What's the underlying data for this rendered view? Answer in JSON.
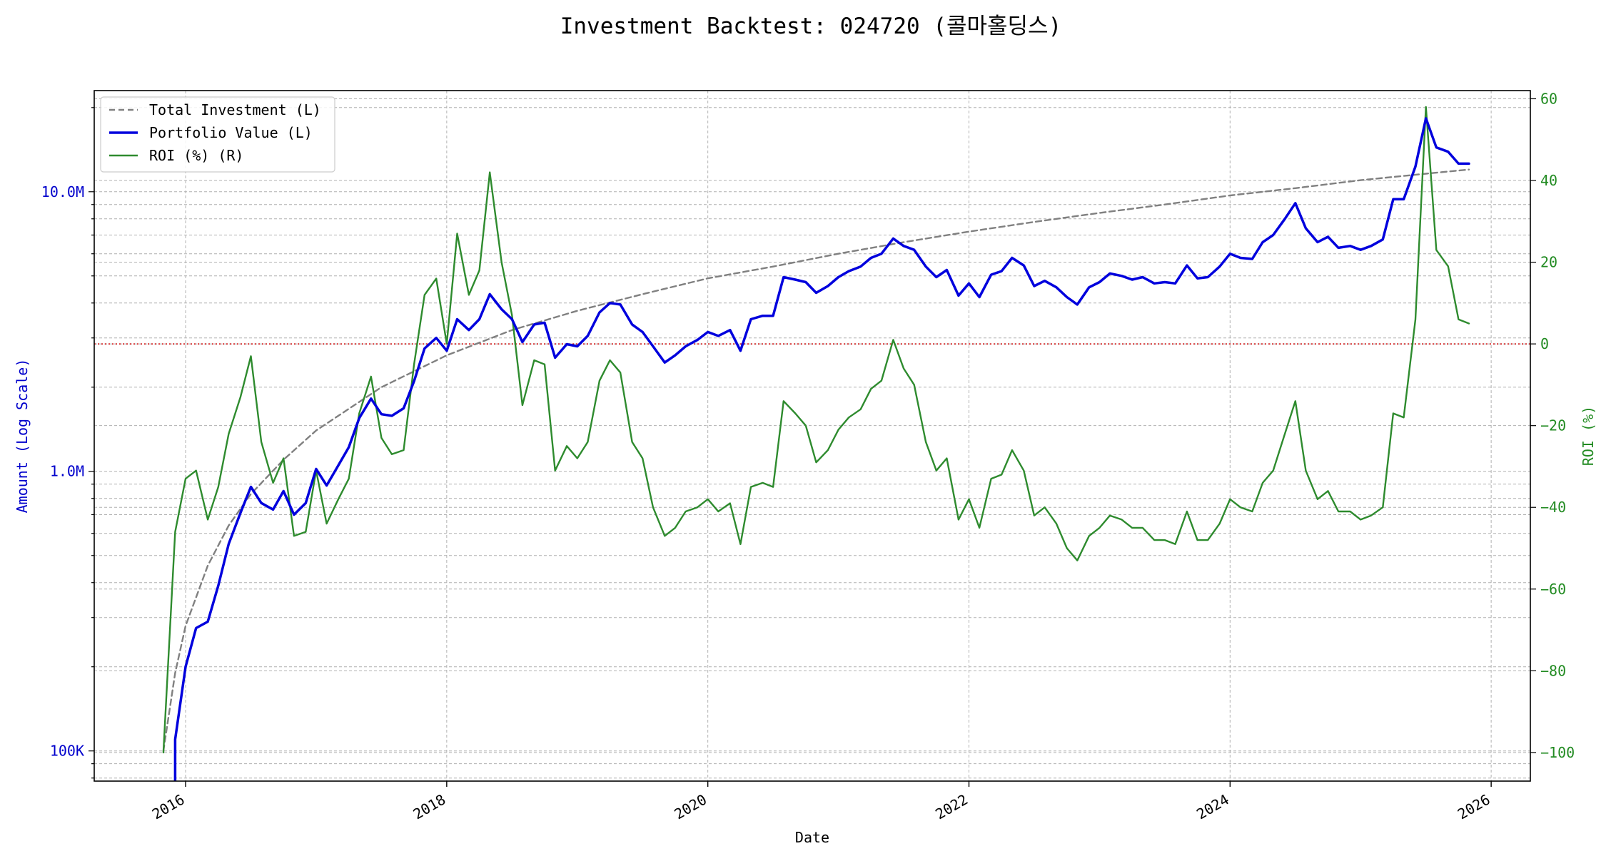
{
  "chart_data": {
    "type": "line",
    "title": "Investment Backtest: 024720 (콜마홀딩스)",
    "xlabel": "Date",
    "ylabel_left": "Amount (Log Scale)",
    "ylabel_right": "ROI (%)",
    "y_left_scale": "log",
    "y_left_range": [
      78000,
      23000000
    ],
    "y_right_range": [
      -107,
      62
    ],
    "x_range": [
      2015.3,
      2026.3
    ],
    "x_ticks": [
      2016,
      2018,
      2020,
      2022,
      2024,
      2026
    ],
    "x_tick_labels": [
      "2016",
      "2018",
      "2020",
      "2022",
      "2024",
      "2026"
    ],
    "y_left_ticks": [
      100000,
      1000000,
      10000000
    ],
    "y_left_tick_labels": [
      "100K",
      "1.0M",
      "10.0M"
    ],
    "y_right_ticks": [
      60,
      40,
      20,
      0,
      -20,
      -40,
      -60,
      -80,
      -100
    ],
    "y_right_tick_labels": [
      "60",
      "40",
      "20",
      "0",
      "−20",
      "−40",
      "−60",
      "−80",
      "−100"
    ],
    "grid": true,
    "reference_line": {
      "axis": "right",
      "value": 0,
      "style": "dotted",
      "color": "#cc0000"
    },
    "legend_position": "top-left",
    "legend": [
      {
        "label": "Total Investment (L)",
        "color": "#808080",
        "style": "dashed"
      },
      {
        "label": "Portfolio Value (L)",
        "color": "#0000dd",
        "style": "solid"
      },
      {
        "label": "ROI (%) (R)",
        "color": "#2e8b2e",
        "style": "solid"
      }
    ],
    "colors": {
      "investment": "#808080",
      "portfolio": "#0000dd",
      "roi": "#2e8b2e",
      "left_axis": "#0000cc",
      "right_axis": "#228b22"
    },
    "series": [
      {
        "name": "Total Investment (L)",
        "axis": "left",
        "x": [
          2015.83,
          2015.92,
          2016.0,
          2016.17,
          2016.33,
          2016.5,
          2016.75,
          2017.0,
          2017.5,
          2018.0,
          2018.5,
          2019.0,
          2019.5,
          2020.0,
          2020.5,
          2021.0,
          2021.5,
          2022.0,
          2022.5,
          2023.0,
          2023.5,
          2024.0,
          2024.5,
          2025.0,
          2025.5,
          2025.83
        ],
        "values": [
          100000,
          190000,
          280000,
          460000,
          640000,
          830000,
          1100000,
          1400000,
          2000000,
          2600000,
          3200000,
          3750000,
          4300000,
          4900000,
          5400000,
          6000000,
          6600000,
          7200000,
          7800000,
          8400000,
          9000000,
          9700000,
          10300000,
          11000000,
          11600000,
          12000000
        ]
      },
      {
        "name": "Portfolio Value (L)",
        "axis": "left",
        "x": [
          2015.92,
          2015.92,
          2016.0,
          2016.08,
          2016.17,
          2016.25,
          2016.33,
          2016.42,
          2016.5,
          2016.58,
          2016.67,
          2016.75,
          2016.83,
          2016.92,
          2017.0,
          2017.08,
          2017.17,
          2017.25,
          2017.33,
          2017.42,
          2017.5,
          2017.58,
          2017.67,
          2017.75,
          2017.83,
          2017.92,
          2018.0,
          2018.08,
          2018.17,
          2018.25,
          2018.33,
          2018.42,
          2018.5,
          2018.58,
          2018.67,
          2018.75,
          2018.83,
          2018.92,
          2019.0,
          2019.08,
          2019.17,
          2019.25,
          2019.33,
          2019.42,
          2019.5,
          2019.58,
          2019.67,
          2019.75,
          2019.83,
          2019.92,
          2020.0,
          2020.08,
          2020.17,
          2020.25,
          2020.33,
          2020.42,
          2020.5,
          2020.58,
          2020.67,
          2020.75,
          2020.83,
          2020.92,
          2021.0,
          2021.08,
          2021.17,
          2021.25,
          2021.33,
          2021.42,
          2021.5,
          2021.58,
          2021.67,
          2021.75,
          2021.83,
          2021.92,
          2022.0,
          2022.08,
          2022.17,
          2022.25,
          2022.33,
          2022.42,
          2022.5,
          2022.58,
          2022.67,
          2022.75,
          2022.83,
          2022.92,
          2023.0,
          2023.08,
          2023.17,
          2023.25,
          2023.33,
          2023.42,
          2023.5,
          2023.58,
          2023.67,
          2023.75,
          2023.83,
          2023.92,
          2024.0,
          2024.08,
          2024.17,
          2024.25,
          2024.33,
          2024.42,
          2024.5,
          2024.58,
          2024.67,
          2024.75,
          2024.83,
          2024.92,
          2025.0,
          2025.08,
          2025.17,
          2025.25,
          2025.33,
          2025.42,
          2025.5,
          2025.58,
          2025.67,
          2025.75,
          2025.83
        ],
        "values": [
          60000,
          110000,
          200000,
          275000,
          290000,
          390000,
          550000,
          710000,
          880000,
          770000,
          730000,
          850000,
          700000,
          770000,
          1020000,
          890000,
          1050000,
          1220000,
          1550000,
          1820000,
          1600000,
          1580000,
          1680000,
          2100000,
          2750000,
          3000000,
          2700000,
          3500000,
          3200000,
          3500000,
          4300000,
          3800000,
          3500000,
          2900000,
          3350000,
          3400000,
          2550000,
          2850000,
          2800000,
          3050000,
          3700000,
          4000000,
          3950000,
          3350000,
          3150000,
          2800000,
          2450000,
          2600000,
          2800000,
          2950000,
          3150000,
          3050000,
          3200000,
          2700000,
          3500000,
          3600000,
          3600000,
          4950000,
          4850000,
          4750000,
          4350000,
          4600000,
          4950000,
          5200000,
          5400000,
          5800000,
          6000000,
          6800000,
          6400000,
          6200000,
          5400000,
          4950000,
          5250000,
          4250000,
          4700000,
          4200000,
          5050000,
          5200000,
          5800000,
          5450000,
          4600000,
          4800000,
          4550000,
          4200000,
          3950000,
          4550000,
          4750000,
          5100000,
          5000000,
          4850000,
          4950000,
          4700000,
          4750000,
          4700000,
          5450000,
          4900000,
          4950000,
          5400000,
          6000000,
          5800000,
          5750000,
          6600000,
          7000000,
          8000000,
          9100000,
          7400000,
          6600000,
          6900000,
          6300000,
          6400000,
          6200000,
          6400000,
          6750000,
          9400000,
          9400000,
          12300000,
          18300000,
          14400000,
          13900000,
          12600000,
          12600000
        ]
      },
      {
        "name": "ROI (%) (R)",
        "axis": "right",
        "x": [
          2015.83,
          2015.92,
          2016.0,
          2016.08,
          2016.17,
          2016.25,
          2016.33,
          2016.42,
          2016.5,
          2016.58,
          2016.67,
          2016.75,
          2016.83,
          2016.92,
          2017.0,
          2017.08,
          2017.17,
          2017.25,
          2017.33,
          2017.42,
          2017.5,
          2017.58,
          2017.67,
          2017.75,
          2017.83,
          2017.92,
          2018.0,
          2018.08,
          2018.17,
          2018.25,
          2018.33,
          2018.42,
          2018.5,
          2018.58,
          2018.67,
          2018.75,
          2018.83,
          2018.92,
          2019.0,
          2019.08,
          2019.17,
          2019.25,
          2019.33,
          2019.42,
          2019.5,
          2019.58,
          2019.67,
          2019.75,
          2019.83,
          2019.92,
          2020.0,
          2020.08,
          2020.17,
          2020.25,
          2020.33,
          2020.42,
          2020.5,
          2020.58,
          2020.67,
          2020.75,
          2020.83,
          2020.92,
          2021.0,
          2021.08,
          2021.17,
          2021.25,
          2021.33,
          2021.42,
          2021.5,
          2021.58,
          2021.67,
          2021.75,
          2021.83,
          2021.92,
          2022.0,
          2022.08,
          2022.17,
          2022.25,
          2022.33,
          2022.42,
          2022.5,
          2022.58,
          2022.67,
          2022.75,
          2022.83,
          2022.92,
          2023.0,
          2023.08,
          2023.17,
          2023.25,
          2023.33,
          2023.42,
          2023.5,
          2023.58,
          2023.67,
          2023.75,
          2023.83,
          2023.92,
          2024.0,
          2024.08,
          2024.17,
          2024.25,
          2024.33,
          2024.42,
          2024.5,
          2024.58,
          2024.67,
          2024.75,
          2024.83,
          2024.92,
          2025.0,
          2025.08,
          2025.17,
          2025.25,
          2025.33,
          2025.42,
          2025.5,
          2025.58,
          2025.67,
          2025.75,
          2025.83
        ],
        "values": [
          -100,
          -46,
          -33,
          -31,
          -43,
          -35,
          -22,
          -13,
          -3,
          -24,
          -34,
          -28,
          -47,
          -46,
          -31,
          -44,
          -38,
          -33,
          -17,
          -8,
          -23,
          -27,
          -26,
          -5,
          12,
          16,
          0,
          27,
          12,
          18,
          42,
          20,
          7,
          -15,
          -4,
          -5,
          -31,
          -25,
          -28,
          -24,
          -9,
          -4,
          -7,
          -24,
          -28,
          -40,
          -47,
          -45,
          -41,
          -40,
          -38,
          -41,
          -39,
          -49,
          -35,
          -34,
          -35,
          -14,
          -17,
          -20,
          -29,
          -26,
          -21,
          -18,
          -16,
          -11,
          -9,
          1,
          -6,
          -10,
          -24,
          -31,
          -28,
          -43,
          -38,
          -45,
          -33,
          -32,
          -26,
          -31,
          -42,
          -40,
          -44,
          -50,
          -53,
          -47,
          -45,
          -42,
          -43,
          -45,
          -45,
          -48,
          -48,
          -49,
          -41,
          -48,
          -48,
          -44,
          -38,
          -40,
          -41,
          -34,
          -31,
          -22,
          -14,
          -31,
          -38,
          -36,
          -41,
          -41,
          -43,
          -42,
          -40,
          -17,
          -18,
          6,
          58,
          23,
          19,
          6,
          5
        ]
      }
    ]
  }
}
